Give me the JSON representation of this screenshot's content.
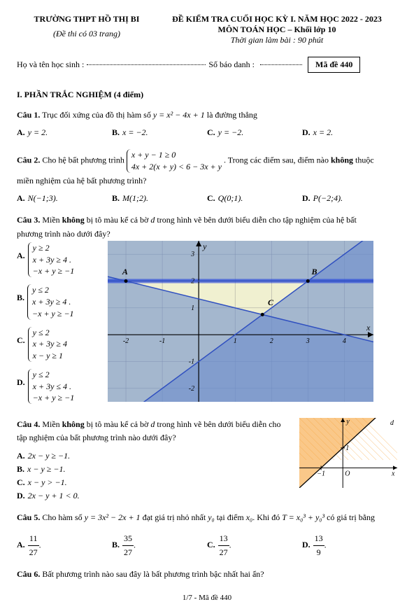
{
  "header": {
    "school": "TRƯỜNG THPT HỒ THỊ BI",
    "sub_note": "(Đề thi có 03 trang)",
    "exam_title": "ĐỀ KIỂM TRA CUỐI HỌC KỲ I. NĂM HỌC 2022 - 2023",
    "subject": "MÔN TOÁN HỌC – Khối lớp 10",
    "duration": "Thời gian làm bài : 90 phút",
    "name_label": "Họ và tên học sinh :",
    "id_label": "Số báo danh :",
    "code_label": "Mã đề 440"
  },
  "section1": "I. PHẦN TRẮC NGHIỆM (4 điểm)",
  "q1": {
    "label": "Câu 1.",
    "text": " Trục đối xứng của đồ thị hàm số ",
    "formula": "y = x² − 4x + 1",
    "tail": " là đường thẳng",
    "A": "y = 2.",
    "B": "x = −2.",
    "C": "y = −2.",
    "D": "x = 2."
  },
  "q2": {
    "label": "Câu 2.",
    "text": " Cho hệ bất phương trình ",
    "case1": "x + y − 1 ≥ 0",
    "case2": "4x + 2(x + y) < 6 − 3x + y",
    "tail": ". Trong các điểm sau, điểm nào ",
    "bold": "không",
    "tail2": " thuộc",
    "line2": "miền nghiệm của hệ bất phương trình?",
    "A": "N(−1;3).",
    "B": "M(1;2).",
    "C": "Q(0;1).",
    "D": "P(−2;4)."
  },
  "q3": {
    "label": "Câu 3.",
    "text": " Miền ",
    "bold": "không",
    "text2": " bị tô màu kể cả bờ ",
    "d": "d",
    "text3": " trong hình vẽ bên dưới biểu diễn cho tập nghiệm của hệ bất",
    "line2": "phương trình nào dưới đây?",
    "A": {
      "l1": "y ≥ 2",
      "l2": "x + 3y ≥ 4",
      "l3": "−x + y ≥ −1"
    },
    "B": {
      "l1": "y ≤ 2",
      "l2": "x + 3y ≥ 4",
      "l3": "−x + y ≥ −1"
    },
    "C": {
      "l1": "y ≤ 2",
      "l2": "x + 3y ≥ 4",
      "l3": "x − y ≥ 1"
    },
    "D": {
      "l1": "y ≤ 2",
      "l2": "x + 3y ≤ 4",
      "l3": "−x + y ≥ −1"
    },
    "dot": ".",
    "chart": {
      "bg": "#f0f0d0",
      "region_fill": "#6688cc",
      "region_opacity": 0.55,
      "grid": "#888",
      "axis": "#000",
      "line": "#3050c0",
      "labels": {
        "A": "A",
        "B": "B",
        "C": "C",
        "y": "y",
        "x": "x"
      },
      "xticks": [
        "-2",
        "-1",
        "1",
        "2",
        "3",
        "4"
      ],
      "yticks": [
        "-2",
        "-1",
        "1",
        "2",
        "3"
      ]
    }
  },
  "q4": {
    "label": "Câu 4.",
    "text": " Miền ",
    "bold": "không",
    "text2": " bị tô màu kể cả bờ ",
    "d": "d",
    "text3": " trong hình vẽ bên dưới biểu diễn cho",
    "line2": "tập nghiệm của bất phương trình nào dưới đây?",
    "A": "2x − y ≥ −1.",
    "B": "x − y ≥ −1.",
    "C": "x − y > −1.",
    "D": "2x − y + 1 < 0.",
    "chart": {
      "fill": "#f7a43a",
      "fill_opacity": 0.6,
      "axis": "#000",
      "d_label": "d",
      "O": "O",
      "x": "x",
      "y": "y",
      "neg1": "−1",
      "one": "1"
    }
  },
  "q5": {
    "label": "Câu 5.",
    "text": " Cho hàm số ",
    "f": "y = 3x² − 2x + 1",
    "text2": " đạt giá trị nhỏ nhất ",
    "y0": "y₀",
    "text3": " tại điểm ",
    "x0": "x₀",
    "text4": ". Khi đó ",
    "T": "T = x₀³ + y₀³",
    "text5": " có giá trị bằng",
    "A_num": "11",
    "A_den": "27",
    "B_num": "35",
    "B_den": "27",
    "C_num": "13",
    "C_den": "27",
    "D_num": "13",
    "D_den": "9",
    "dot": "."
  },
  "q6": {
    "label": "Câu 6.",
    "text": " Bất phương trình nào sau đây là bất phương trình bậc nhất hai ẩn?"
  },
  "footer": "1/7 - Mã đề 440"
}
